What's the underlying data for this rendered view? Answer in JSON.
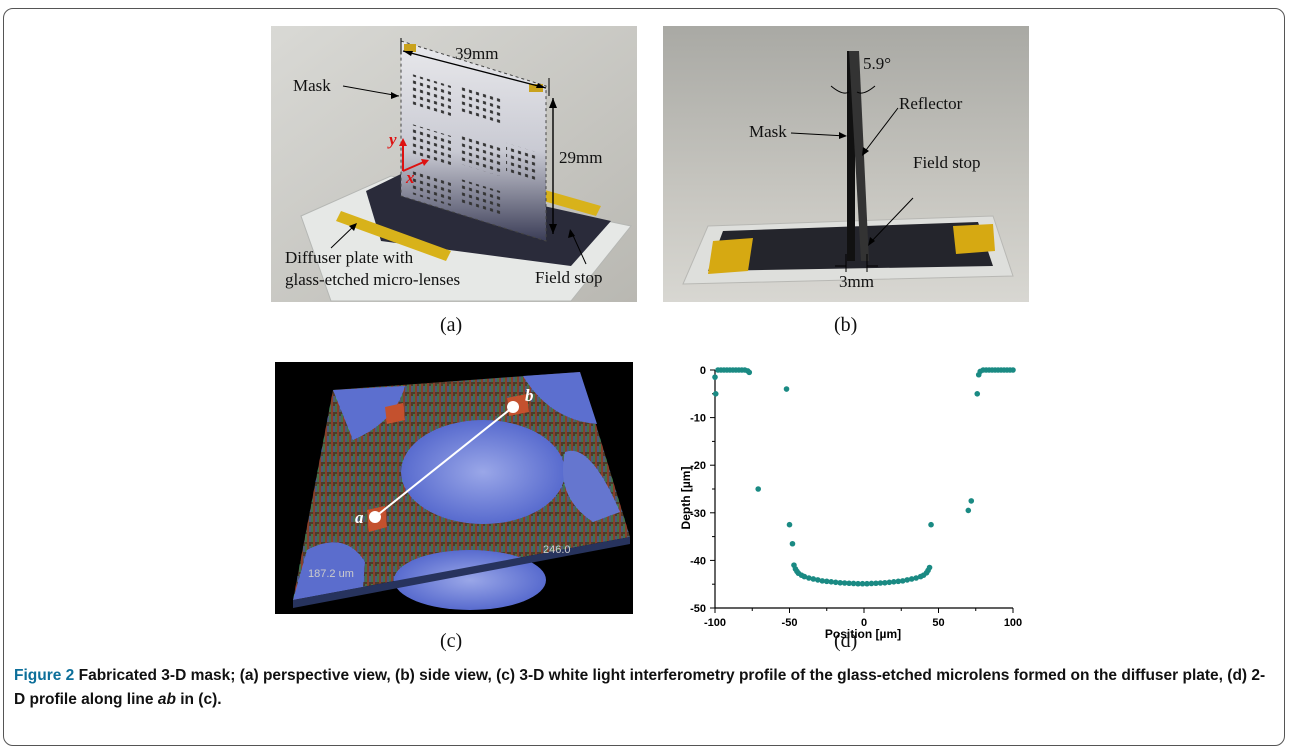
{
  "panels": {
    "a": {
      "label": "(a)",
      "dim_width": "39mm",
      "dim_height": "29mm",
      "mask": "Mask",
      "axis_y": "y",
      "axis_x": "x",
      "diffuser_line1": "Diffuser plate with",
      "diffuser_line2": "glass-etched micro-lenses",
      "field_stop": "Field stop"
    },
    "b": {
      "label": "(b)",
      "angle": "5.9°",
      "reflector": "Reflector",
      "mask": "Mask",
      "field_stop": "Field stop",
      "gap": "3mm"
    },
    "c": {
      "label": "(c)",
      "point_a": "a",
      "point_b": "b",
      "dim_left": "187.2 um",
      "dim_right": "246.0"
    },
    "d": {
      "label": "(d)"
    }
  },
  "chart_data": {
    "type": "scatter",
    "xlabel": "Position [µm]",
    "ylabel": "Depth [µm]",
    "xlim": [
      -100,
      100
    ],
    "ylim": [
      -50,
      0
    ],
    "xticks": [
      -100,
      -50,
      0,
      50,
      100
    ],
    "yticks": [
      0,
      -10,
      -20,
      -30,
      -40,
      -50
    ],
    "marker_color": "#1a8a83",
    "series": [
      {
        "points": [
          [
            -100,
            -1.5
          ],
          [
            -99.5,
            -5
          ],
          [
            -98,
            0
          ],
          [
            -96,
            0
          ],
          [
            -94,
            0
          ],
          [
            -92,
            0
          ],
          [
            -90,
            0
          ],
          [
            -88,
            0
          ],
          [
            -86,
            0
          ],
          [
            -84,
            0
          ],
          [
            -82,
            0
          ],
          [
            -80,
            0
          ],
          [
            -78,
            -0.2
          ],
          [
            -77,
            -0.5
          ],
          [
            -71,
            -25
          ],
          [
            -52,
            -4
          ],
          [
            -50,
            -32.5
          ],
          [
            -48,
            -36.5
          ],
          [
            -47,
            -41
          ],
          [
            -46,
            -41.8
          ],
          [
            -45,
            -42.3
          ],
          [
            -44,
            -42.7
          ],
          [
            -42,
            -43.1
          ],
          [
            -40,
            -43.4
          ],
          [
            -37,
            -43.7
          ],
          [
            -34,
            -43.9
          ],
          [
            -31,
            -44.1
          ],
          [
            -28,
            -44.3
          ],
          [
            -25,
            -44.4
          ],
          [
            -22,
            -44.5
          ],
          [
            -19,
            -44.6
          ],
          [
            -16,
            -44.7
          ],
          [
            -13,
            -44.75
          ],
          [
            -10,
            -44.8
          ],
          [
            -7,
            -44.85
          ],
          [
            -4,
            -44.9
          ],
          [
            -1,
            -44.9
          ],
          [
            2,
            -44.9
          ],
          [
            5,
            -44.85
          ],
          [
            8,
            -44.8
          ],
          [
            11,
            -44.75
          ],
          [
            14,
            -44.7
          ],
          [
            17,
            -44.6
          ],
          [
            20,
            -44.5
          ],
          [
            23,
            -44.4
          ],
          [
            26,
            -44.3
          ],
          [
            29,
            -44.1
          ],
          [
            32,
            -43.9
          ],
          [
            35,
            -43.7
          ],
          [
            38,
            -43.4
          ],
          [
            40,
            -43.1
          ],
          [
            42,
            -42.6
          ],
          [
            43,
            -42.1
          ],
          [
            44,
            -41.5
          ],
          [
            45,
            -32.5
          ],
          [
            70,
            -29.5
          ],
          [
            72,
            -27.5
          ],
          [
            76,
            -5
          ],
          [
            77,
            -1
          ],
          [
            78,
            -0.3
          ],
          [
            80,
            0
          ],
          [
            82,
            0
          ],
          [
            84,
            0
          ],
          [
            86,
            0
          ],
          [
            88,
            0
          ],
          [
            90,
            0
          ],
          [
            92,
            0
          ],
          [
            94,
            0
          ],
          [
            96,
            0
          ],
          [
            98,
            0
          ],
          [
            100,
            0
          ]
        ]
      }
    ]
  },
  "caption": {
    "figure_label": "Figure 2",
    "text": " Fabricated 3-D mask; (a) perspective view, (b) side view, (c) 3-D white light interferometry profile of the glass-etched microlens formed on the diffuser plate, (d) 2-D profile along line ",
    "ab": "ab",
    "in": " in (c)."
  }
}
